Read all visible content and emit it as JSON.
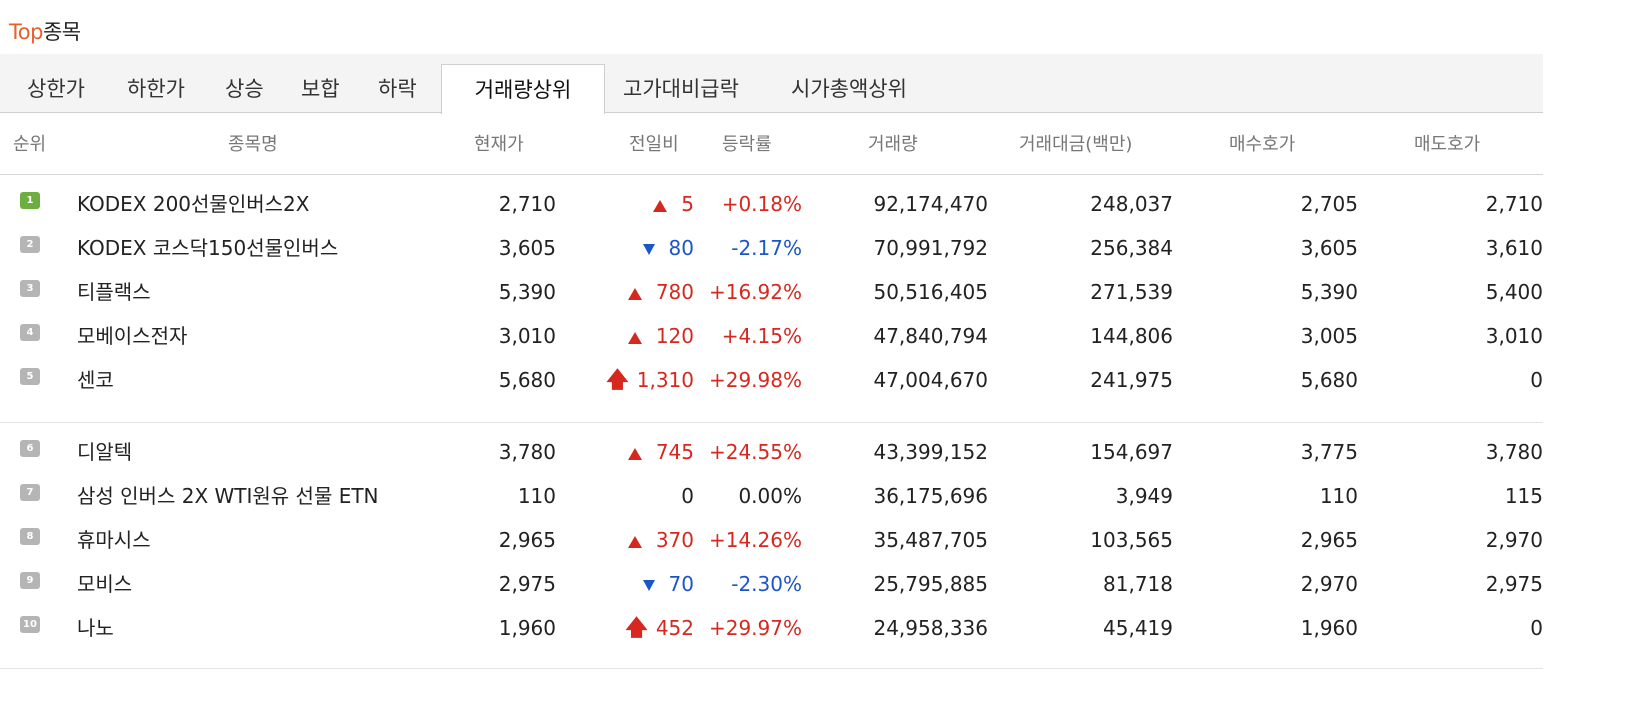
{
  "title": {
    "accent": "Top",
    "rest": "종목"
  },
  "tabs": [
    {
      "label": "상한가",
      "active": false
    },
    {
      "label": "하한가",
      "active": false
    },
    {
      "label": "상승",
      "active": false
    },
    {
      "label": "보합",
      "active": false
    },
    {
      "label": "하락",
      "active": false
    },
    {
      "label": "거래량상위",
      "active": true
    },
    {
      "label": "고가대비급락",
      "active": false
    },
    {
      "label": "시가총액상위",
      "active": false
    }
  ],
  "columns": {
    "rank": "순위",
    "name": "종목명",
    "price": "현재가",
    "change": "전일비",
    "rate": "등락률",
    "volume": "거래량",
    "amount": "거래대금(백만)",
    "bid": "매수호가",
    "ask": "매도호가"
  },
  "rows": [
    {
      "rank": "1",
      "name": "KODEX 200선물인버스2X",
      "price": "2,710",
      "dir": "up",
      "change": "5",
      "rate": "+0.18%",
      "volume": "92,174,470",
      "amount": "248,037",
      "bid": "2,705",
      "ask": "2,710"
    },
    {
      "rank": "2",
      "name": "KODEX 코스닥150선물인버스",
      "price": "3,605",
      "dir": "down",
      "change": "80",
      "rate": "-2.17%",
      "volume": "70,991,792",
      "amount": "256,384",
      "bid": "3,605",
      "ask": "3,610"
    },
    {
      "rank": "3",
      "name": "티플랙스",
      "price": "5,390",
      "dir": "up",
      "change": "780",
      "rate": "+16.92%",
      "volume": "50,516,405",
      "amount": "271,539",
      "bid": "5,390",
      "ask": "5,400"
    },
    {
      "rank": "4",
      "name": "모베이스전자",
      "price": "3,010",
      "dir": "up",
      "change": "120",
      "rate": "+4.15%",
      "volume": "47,840,794",
      "amount": "144,806",
      "bid": "3,005",
      "ask": "3,010"
    },
    {
      "rank": "5",
      "name": "센코",
      "price": "5,680",
      "dir": "limit",
      "change": "1,310",
      "rate": "+29.98%",
      "volume": "47,004,670",
      "amount": "241,975",
      "bid": "5,680",
      "ask": "0"
    },
    {
      "rank": "6",
      "name": "디알텍",
      "price": "3,780",
      "dir": "up",
      "change": "745",
      "rate": "+24.55%",
      "volume": "43,399,152",
      "amount": "154,697",
      "bid": "3,775",
      "ask": "3,780"
    },
    {
      "rank": "7",
      "name": "삼성 인버스 2X WTI원유 선물 ETN",
      "price": "110",
      "dir": "none",
      "change": "0",
      "rate": "0.00%",
      "volume": "36,175,696",
      "amount": "3,949",
      "bid": "110",
      "ask": "115"
    },
    {
      "rank": "8",
      "name": "휴마시스",
      "price": "2,965",
      "dir": "up",
      "change": "370",
      "rate": "+14.26%",
      "volume": "35,487,705",
      "amount": "103,565",
      "bid": "2,965",
      "ask": "2,970"
    },
    {
      "rank": "9",
      "name": "모비스",
      "price": "2,975",
      "dir": "down",
      "change": "70",
      "rate": "-2.30%",
      "volume": "25,795,885",
      "amount": "81,718",
      "bid": "2,970",
      "ask": "2,975"
    },
    {
      "rank": "10",
      "name": "나노",
      "price": "1,960",
      "dir": "limit",
      "change": "452",
      "rate": "+29.97%",
      "volume": "24,958,336",
      "amount": "45,419",
      "bid": "1,960",
      "ask": "0"
    }
  ],
  "colors": {
    "accent": "#e8602c",
    "up": "#d6281f",
    "down": "#1b56c9",
    "rank_first": "#6cae3f",
    "rank_other": "#b5b5b5"
  }
}
